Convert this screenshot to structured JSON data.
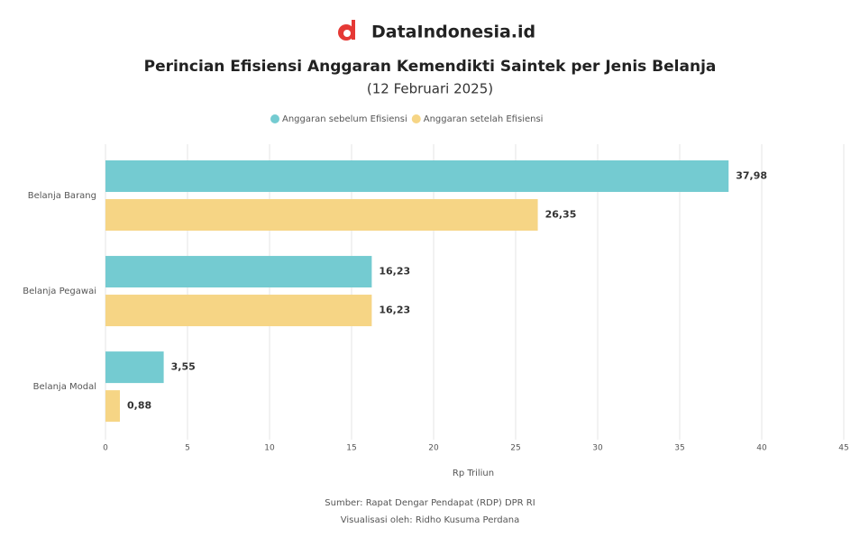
{
  "brand": "DataIndonesia.id",
  "chart_data": {
    "type": "bar",
    "orientation": "horizontal",
    "title": "Perincian Efisiensi Anggaran Kemendikti Saintek per Jenis Belanja",
    "subtitle": "(12 Februari 2025)",
    "categories": [
      "Belanja Barang",
      "Belanja Pegawai",
      "Belanja Modal"
    ],
    "series": [
      {
        "name": "Anggaran sebelum Efisiensi",
        "color": "#74cbd1",
        "values": [
          37.98,
          16.23,
          3.55
        ],
        "value_labels": [
          "37,98",
          "16,23",
          "3,55"
        ]
      },
      {
        "name": "Anggaran setelah Efisiensi",
        "color": "#f6d585",
        "values": [
          26.35,
          16.23,
          0.88
        ],
        "value_labels": [
          "26,35",
          "16,23",
          "0,88"
        ]
      }
    ],
    "xlim": [
      0,
      45
    ],
    "xticks": [
      0,
      5,
      10,
      15,
      20,
      25,
      30,
      35,
      40,
      45
    ],
    "xlabel": "Rp Triliun",
    "grid": true,
    "legend": "top",
    "source": "Sumber: Rapat Dengar Pendapat (RDP) DPR RI",
    "credit": "Visualisasi oleh: Ridho Kusuma Perdana"
  }
}
